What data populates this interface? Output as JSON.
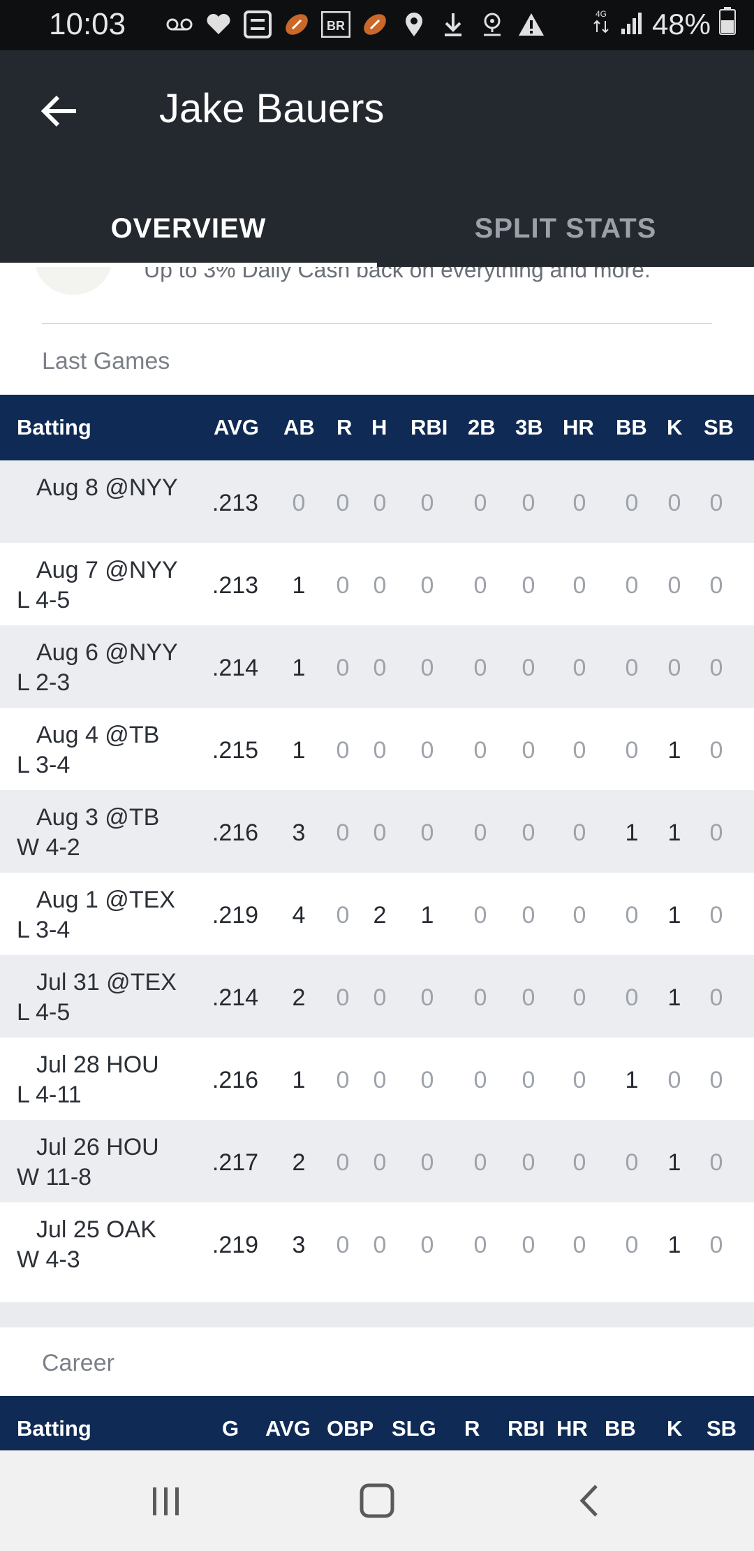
{
  "status_bar": {
    "time": "10:03",
    "battery": "48%",
    "icons": [
      "voicemail-icon",
      "heart-icon",
      "s-app-icon",
      "football-icon",
      "br-icon",
      "football-icon",
      "location-icon",
      "download-icon",
      "location-outline-icon",
      "warning-icon"
    ],
    "network": "4G LTE"
  },
  "app_bar": {
    "title": "Jake Bauers",
    "tabs": [
      {
        "label": "OVERVIEW",
        "active": true
      },
      {
        "label": "SPLIT STATS",
        "active": false
      }
    ]
  },
  "promo": {
    "text": "Up to 3% Daily Cash back on everything and more."
  },
  "last_games": {
    "label": "Last Games",
    "header": {
      "first": "Batting",
      "cols": [
        "AVG",
        "AB",
        "R",
        "H",
        "RBI",
        "2B",
        "3B",
        "HR",
        "BB",
        "K",
        "SB"
      ]
    },
    "rows": [
      {
        "game": "Aug 8 @NYY",
        "result": "",
        "avg": ".213",
        "stats": [
          "0",
          "0",
          "0",
          "0",
          "0",
          "0",
          "0",
          "0",
          "0",
          "0"
        ]
      },
      {
        "game": "Aug 7 @NYY",
        "result": "L 4-5",
        "avg": ".213",
        "stats": [
          "1",
          "0",
          "0",
          "0",
          "0",
          "0",
          "0",
          "0",
          "0",
          "0"
        ]
      },
      {
        "game": "Aug 6 @NYY",
        "result": "L 2-3",
        "avg": ".214",
        "stats": [
          "1",
          "0",
          "0",
          "0",
          "0",
          "0",
          "0",
          "0",
          "0",
          "0"
        ]
      },
      {
        "game": "Aug 4 @TB",
        "result": "L 3-4",
        "avg": ".215",
        "stats": [
          "1",
          "0",
          "0",
          "0",
          "0",
          "0",
          "0",
          "0",
          "1",
          "0"
        ]
      },
      {
        "game": "Aug 3 @TB",
        "result": "W 4-2",
        "avg": ".216",
        "stats": [
          "3",
          "0",
          "0",
          "0",
          "0",
          "0",
          "0",
          "1",
          "1",
          "0"
        ]
      },
      {
        "game": "Aug 1 @TEX",
        "result": "L 3-4",
        "avg": ".219",
        "stats": [
          "4",
          "0",
          "2",
          "1",
          "0",
          "0",
          "0",
          "0",
          "1",
          "0"
        ]
      },
      {
        "game": "Jul 31 @TEX",
        "result": "L 4-5",
        "avg": ".214",
        "stats": [
          "2",
          "0",
          "0",
          "0",
          "0",
          "0",
          "0",
          "0",
          "1",
          "0"
        ]
      },
      {
        "game": "Jul 28 HOU",
        "result": "L 4-11",
        "avg": ".216",
        "stats": [
          "1",
          "0",
          "0",
          "0",
          "0",
          "0",
          "0",
          "1",
          "0",
          "0"
        ]
      },
      {
        "game": "Jul 26 HOU",
        "result": "W 11-8",
        "avg": ".217",
        "stats": [
          "2",
          "0",
          "0",
          "0",
          "0",
          "0",
          "0",
          "0",
          "1",
          "0"
        ]
      },
      {
        "game": "Jul 25 OAK",
        "result": "W 4-3",
        "avg": ".219",
        "stats": [
          "3",
          "0",
          "0",
          "0",
          "0",
          "0",
          "0",
          "0",
          "1",
          "0"
        ]
      }
    ]
  },
  "career": {
    "label": "Career",
    "header": {
      "first": "Batting",
      "cols": [
        "G",
        "AVG",
        "OBP",
        "SLG",
        "R",
        "RBI",
        "HR",
        "BB",
        "K",
        "SB"
      ]
    }
  },
  "nav_bar": {
    "buttons": [
      "recent-apps-icon",
      "home-icon",
      "back-icon"
    ]
  }
}
